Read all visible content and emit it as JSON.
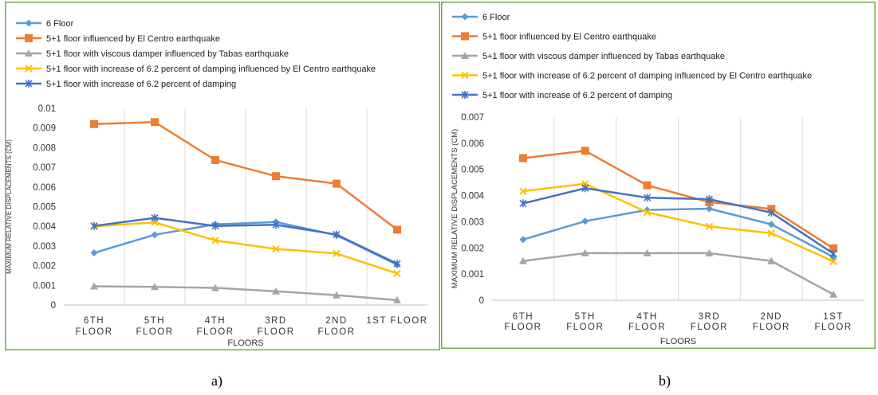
{
  "chart_data": [
    {
      "panel": "a",
      "type": "line",
      "xlabel": "FLOORS",
      "ylabel": "MAXIMUM RELATIVE DISPLACEMENTS (CM)",
      "ylim": [
        0,
        0.01
      ],
      "yticks": [
        "0",
        "0.001",
        "0.002",
        "0.003",
        "0.004",
        "0.005",
        "0.006",
        "0.007",
        "0.008",
        "0.009",
        "0.01"
      ],
      "categories": [
        [
          "6TH",
          "FLOOR"
        ],
        [
          "5TH",
          "FLOOR"
        ],
        [
          "4TH",
          "FLOOR"
        ],
        [
          "3RD",
          "FLOOR"
        ],
        [
          "2ND",
          "FLOOR"
        ],
        [
          "1ST FLOOR"
        ]
      ],
      "grid": "vertical",
      "legend_position": "top-left",
      "series": [
        {
          "name": "6 Floor",
          "color": "#5B9BD5",
          "marker": "diamond",
          "values": [
            0.00265,
            0.00357,
            0.0041,
            0.00422,
            0.00355,
            0.00205
          ]
        },
        {
          "name": "5+1 floor influenced by El Centro earthquake",
          "color": "#ED7D31",
          "marker": "square",
          "values": [
            0.0092,
            0.0093,
            0.00737,
            0.00655,
            0.00617,
            0.00383
          ]
        },
        {
          "name": "5+1 floor with viscous damper influenced by Tabas earthquake",
          "color": "#A5A5A5",
          "marker": "triangle",
          "values": [
            0.00095,
            0.00092,
            0.00087,
            0.0007,
            0.0005,
            0.00025
          ]
        },
        {
          "name": "5+1 floor with increase of 6.2 percent of damping influenced by El Centro earthquake",
          "color": "#FFC000",
          "marker": "x",
          "values": [
            0.004,
            0.0042,
            0.00328,
            0.00285,
            0.00262,
            0.0016
          ]
        },
        {
          "name": "5+1 floor with increase of 6.2 percent of damping",
          "color": "#4472C4",
          "marker": "star",
          "values": [
            0.00402,
            0.00443,
            0.00402,
            0.00408,
            0.00358,
            0.0021
          ]
        }
      ]
    },
    {
      "panel": "b",
      "type": "line",
      "xlabel": "FLOORS",
      "ylabel": "MAXIMUM RELATIVE DISPLACEMENTS (CM)",
      "ylim": [
        0,
        0.007
      ],
      "yticks": [
        "0",
        "0.001",
        "0.002",
        "0.003",
        "0.004",
        "0.005",
        "0.006",
        "0.007"
      ],
      "categories": [
        [
          "6TH",
          "FLOOR"
        ],
        [
          "5TH",
          "FLOOR"
        ],
        [
          "4TH",
          "FLOOR"
        ],
        [
          "3RD",
          "FLOOR"
        ],
        [
          "2ND",
          "FLOOR"
        ],
        [
          "1ST",
          "FLOOR"
        ]
      ],
      "grid": "vertical",
      "legend_position": "top-left",
      "series": [
        {
          "name": "6 Floor",
          "color": "#5B9BD5",
          "marker": "diamond",
          "values": [
            0.00232,
            0.00302,
            0.00345,
            0.0035,
            0.0029,
            0.00165
          ]
        },
        {
          "name": "5+1 floor influenced by El Centro earthquake",
          "color": "#ED7D31",
          "marker": "square",
          "values": [
            0.00543,
            0.00571,
            0.00439,
            0.00375,
            0.00349,
            0.00198
          ]
        },
        {
          "name": "5+1 floor with viscous damper influenced by Tabas earthquake",
          "color": "#A5A5A5",
          "marker": "triangle",
          "values": [
            0.0015,
            0.0018,
            0.0018,
            0.0018,
            0.0015,
            0.00022
          ]
        },
        {
          "name": "5+1 floor with increase of 6.2 percent of damping influenced by El Centro earthquake",
          "color": "#FFC000",
          "marker": "x",
          "values": [
            0.00417,
            0.00445,
            0.00336,
            0.00282,
            0.00256,
            0.00148
          ]
        },
        {
          "name": "5+1 floor with increase of 6.2 percent of damping",
          "color": "#4472C4",
          "marker": "star",
          "values": [
            0.0037,
            0.00428,
            0.00392,
            0.00386,
            0.00335,
            0.00178
          ]
        }
      ]
    }
  ],
  "panel_labels": [
    "a)",
    "b)"
  ],
  "frame_colors": {
    "a": "#70AD47",
    "b": "#70AD47"
  }
}
